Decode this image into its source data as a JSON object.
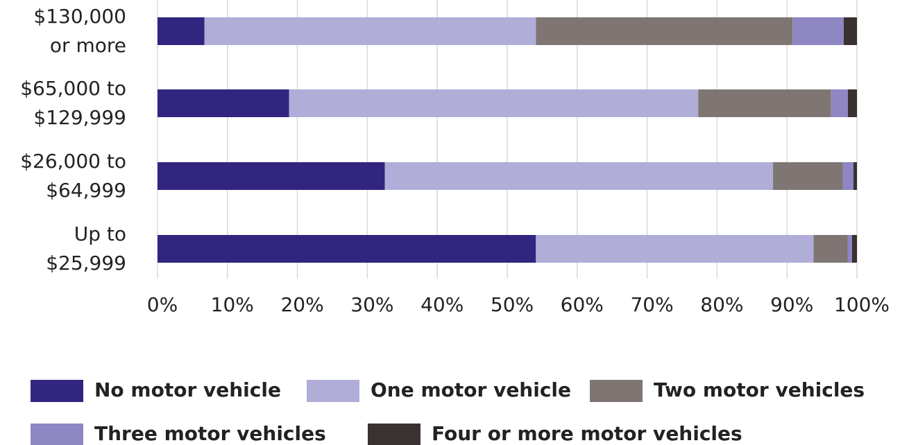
{
  "chart_data": {
    "type": "stacked_barh",
    "categories": [
      "$130,000\nor more",
      "$65,000 to\n$129,999",
      "$26,000 to\n$64,999",
      "Up to\n$25,999"
    ],
    "series": [
      {
        "name": "No motor vehicle",
        "color": "#312580",
        "values": [
          6.7,
          18.8,
          32.5,
          54.1
        ]
      },
      {
        "name": "One motor vehicle",
        "color": "#b0aed8",
        "values": [
          47.4,
          58.5,
          55.5,
          39.7
        ]
      },
      {
        "name": "Two motor vehicles",
        "color": "#7f7673",
        "values": [
          36.7,
          19.0,
          10.0,
          4.9
        ]
      },
      {
        "name": "Three motor vehicles",
        "color": "#8f86c4",
        "values": [
          7.3,
          2.4,
          1.5,
          0.6
        ]
      },
      {
        "name": "Four or more motor vehicles",
        "color": "#3a3230",
        "values": [
          1.9,
          1.3,
          0.5,
          0.7
        ]
      }
    ],
    "xlim": [
      0,
      100
    ],
    "xticks": [
      {
        "value": 0,
        "label": "0%"
      },
      {
        "value": 10,
        "label": "10%"
      },
      {
        "value": 20,
        "label": "20%"
      },
      {
        "value": 30,
        "label": "30%"
      },
      {
        "value": 40,
        "label": "40%"
      },
      {
        "value": 50,
        "label": "50%"
      },
      {
        "value": 60,
        "label": "60%"
      },
      {
        "value": 70,
        "label": "70%"
      },
      {
        "value": 80,
        "label": "80%"
      },
      {
        "value": 90,
        "label": "90%"
      },
      {
        "value": 100,
        "label": "100%"
      }
    ],
    "grid": true
  }
}
